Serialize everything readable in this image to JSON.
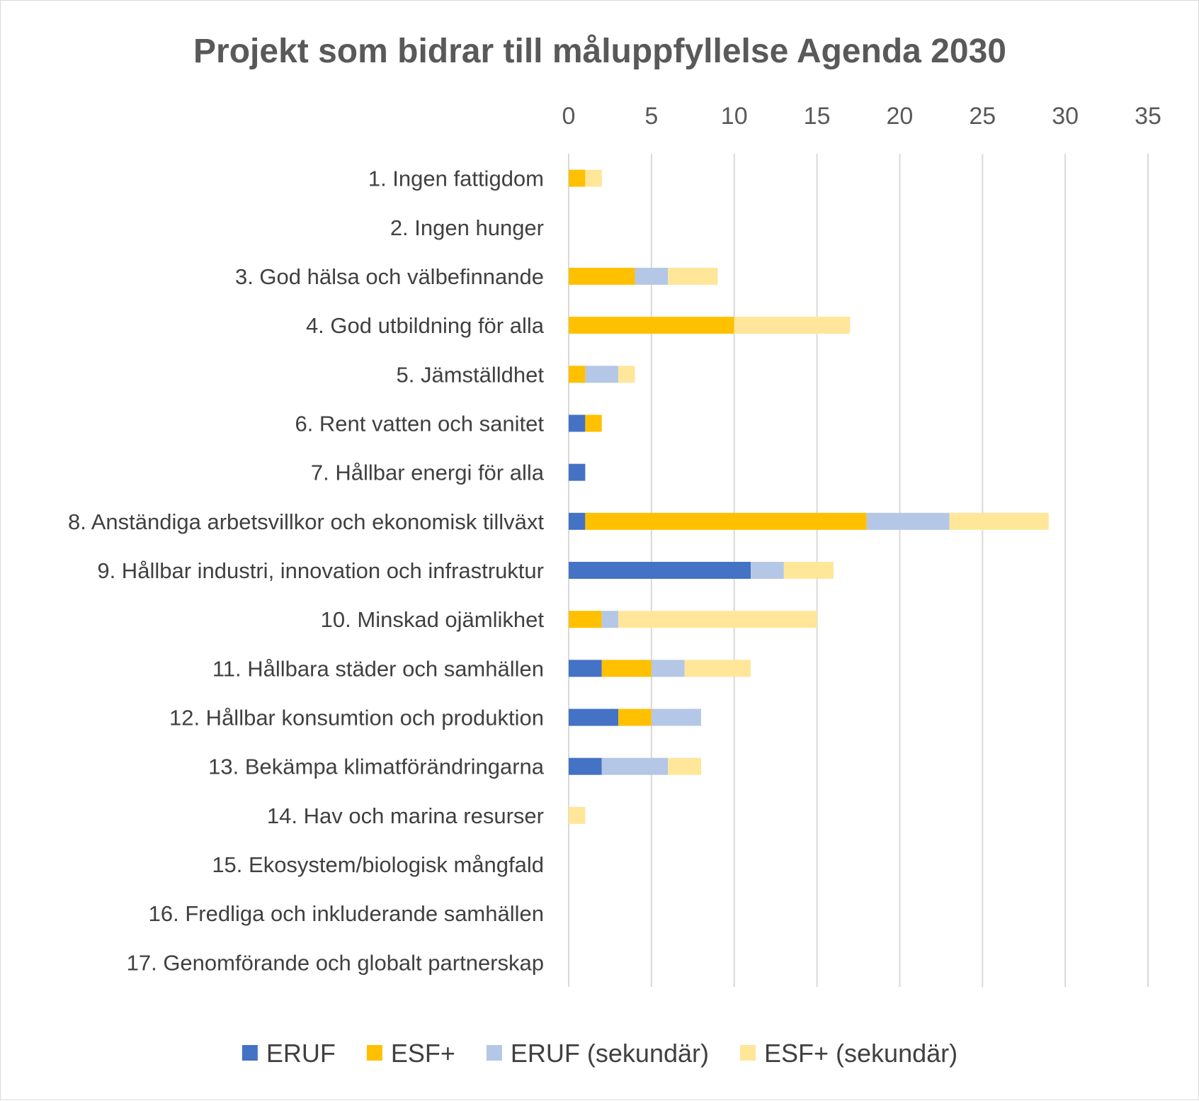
{
  "chart_data": {
    "type": "bar",
    "orientation": "horizontal",
    "stacked": true,
    "title": "Projekt som bidrar till måluppfyllelse Agenda 2030",
    "xlabel": "",
    "ylabel": "",
    "xlim": [
      0,
      35
    ],
    "x_ticks": [
      0,
      5,
      10,
      15,
      20,
      25,
      30,
      35
    ],
    "x_axis_position": "top",
    "grid": true,
    "legend_position": "bottom",
    "categories": [
      "1. Ingen fattigdom",
      "2. Ingen hunger",
      "3. God hälsa och välbefinnande",
      "4. God utbildning för alla",
      "5. Jämställdhet",
      "6. Rent vatten och sanitet",
      "7. Hållbar energi för alla",
      "8. Anständiga arbetsvillkor och ekonomisk tillväxt",
      "9. Hållbar industri, innovation och infrastruktur",
      "10. Minskad ojämlikhet",
      "11. Hållbara städer och samhällen",
      "12. Hållbar konsumtion och produktion",
      "13. Bekämpa klimatförändringarna",
      "14. Hav och marina resurser",
      "15. Ekosystem/biologisk mångfald",
      "16. Fredliga och inkluderande samhällen",
      "17. Genomförande och globalt partnerskap"
    ],
    "series": [
      {
        "name": "ERUF",
        "color": "#4472c4",
        "values": [
          0,
          0,
          0,
          0,
          0,
          1,
          1,
          1,
          11,
          0,
          2,
          3,
          2,
          0,
          0,
          0,
          0
        ]
      },
      {
        "name": "ESF+",
        "color": "#ffc000",
        "values": [
          1,
          0,
          4,
          10,
          1,
          1,
          0,
          17,
          0,
          2,
          3,
          2,
          0,
          0,
          0,
          0,
          0
        ]
      },
      {
        "name": "ERUF (sekundär)",
        "color": "#b4c7e7",
        "values": [
          0,
          0,
          2,
          0,
          2,
          0,
          0,
          5,
          2,
          1,
          2,
          3,
          4,
          0,
          0,
          0,
          0
        ]
      },
      {
        "name": "ESF+ (sekundär)",
        "color": "#ffe699",
        "values": [
          1,
          0,
          3,
          7,
          1,
          0,
          0,
          6,
          3,
          12,
          4,
          0,
          2,
          1,
          0,
          0,
          0
        ]
      }
    ]
  }
}
